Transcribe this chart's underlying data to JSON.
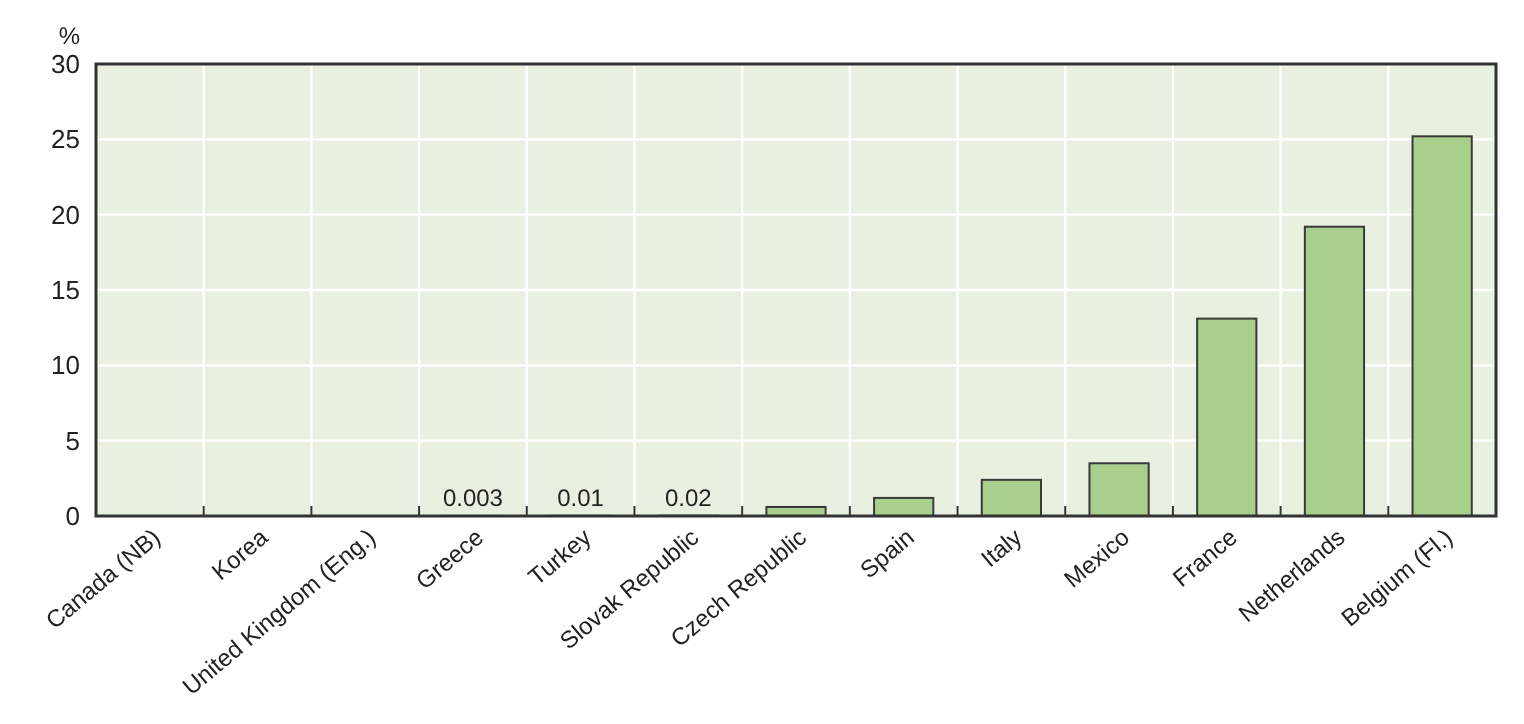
{
  "chart_data": {
    "type": "bar",
    "ylabel": "%",
    "categories": [
      "Canada (NB)",
      "Korea",
      "United Kingdom (Eng.)",
      "Greece",
      "Turkey",
      "Slovak Republic",
      "Czech Republic",
      "Spain",
      "Italy",
      "Mexico",
      "France",
      "Netherlands",
      "Belgium (Fl.)"
    ],
    "values": [
      null,
      null,
      null,
      0.003,
      0.01,
      0.02,
      0.6,
      1.2,
      2.4,
      3.5,
      13.1,
      19.2,
      25.2
    ],
    "value_labels": [
      null,
      null,
      null,
      "0.003",
      "0.01",
      "0.02",
      null,
      null,
      null,
      null,
      null,
      null,
      null
    ],
    "color": "#a9cf8c",
    "ylim": [
      0,
      30
    ],
    "yticks": [
      0,
      5,
      10,
      15,
      20,
      25,
      30
    ],
    "grid": true
  }
}
